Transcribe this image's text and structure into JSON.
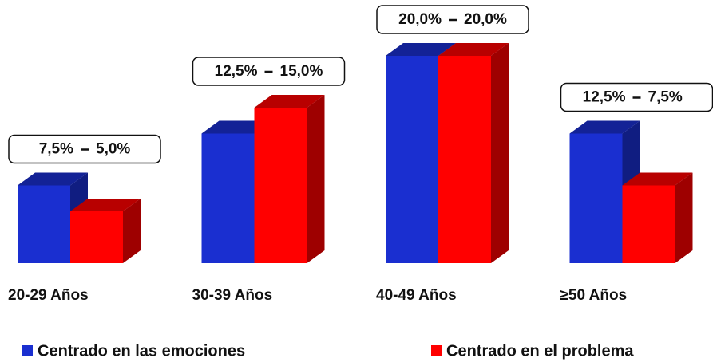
{
  "chart_data": {
    "type": "bar3d",
    "categories": [
      "20-29 Años",
      "30-39  Años",
      "40-49 Años",
      "≥50 Años"
    ],
    "series": [
      {
        "name": "Centrado en las emociones",
        "color": "#1a2fd0",
        "values": [
          7.5,
          12.5,
          20,
          12.5
        ],
        "value_labels": [
          "7,5%",
          "12,5%",
          "20,0%",
          "12,5%"
        ]
      },
      {
        "name": "Centrado en el problema",
        "color": "#ff0000",
        "values": [
          5,
          15,
          20,
          7.5
        ],
        "value_labels": [
          "5,0%",
          "15,0%",
          "20,0%",
          "7,5%"
        ]
      }
    ]
  }
}
